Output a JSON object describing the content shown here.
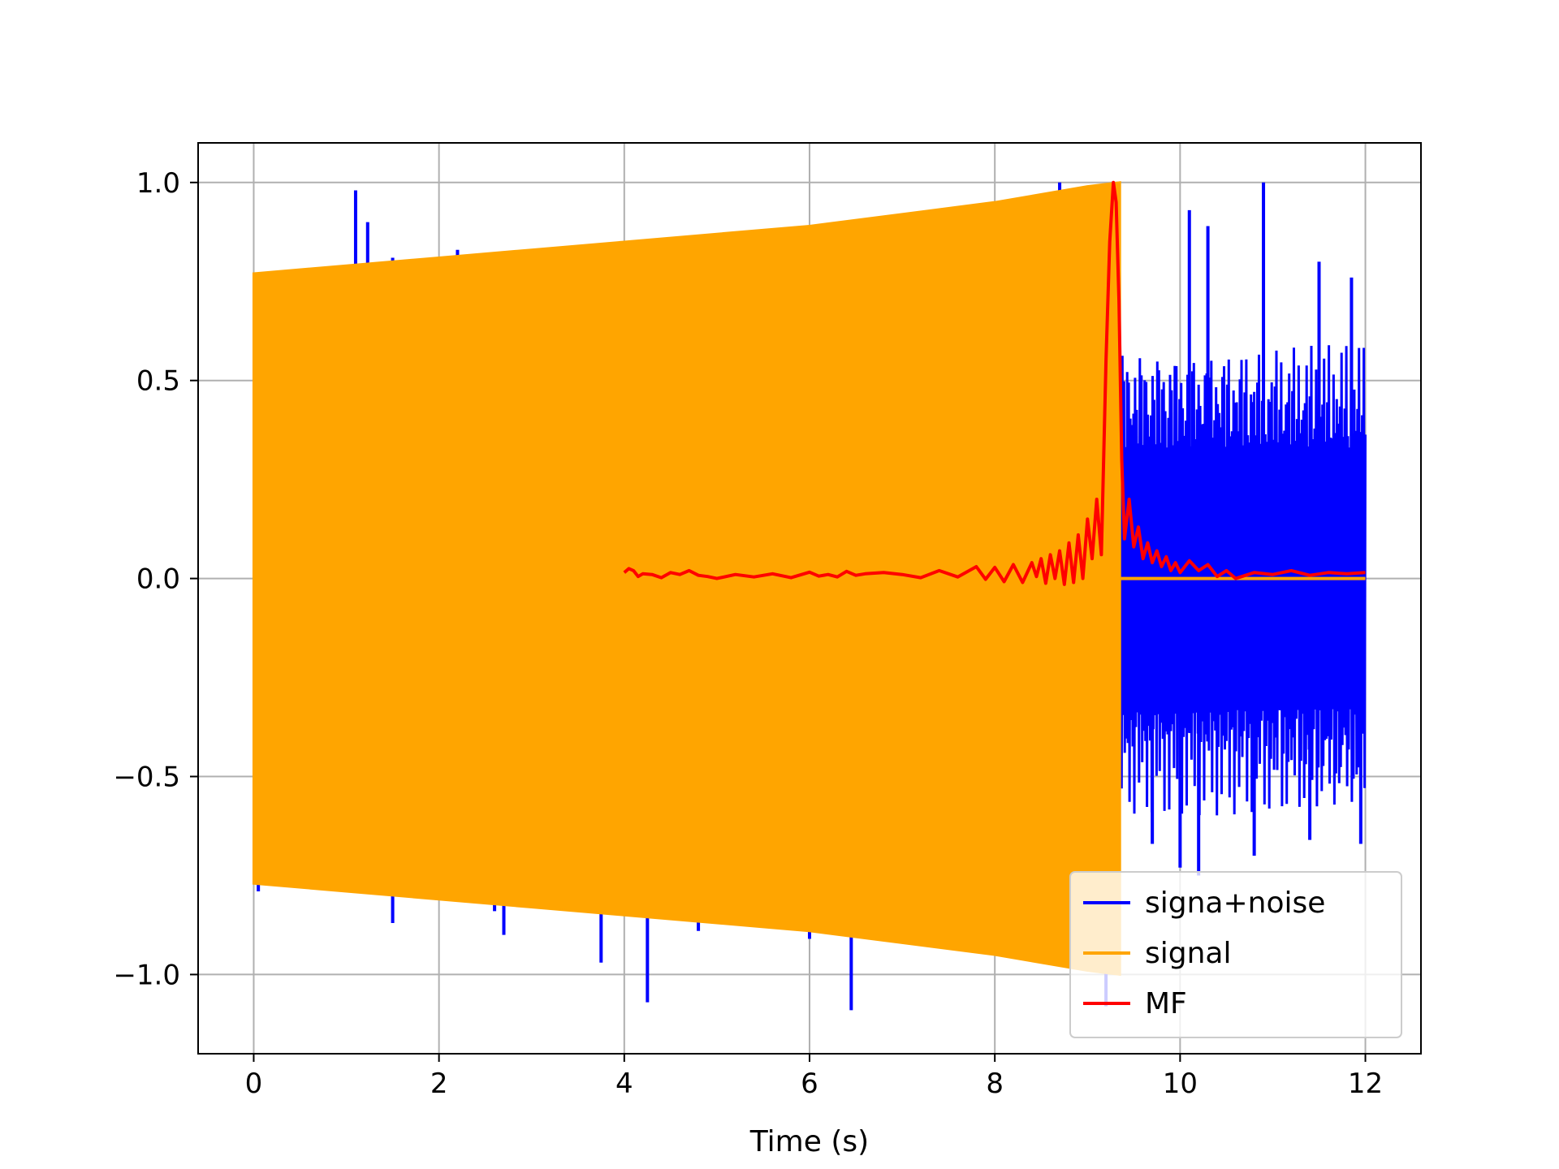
{
  "chart_data": {
    "type": "line",
    "title": "",
    "xlabel": "Time (s)",
    "ylabel": "",
    "xlim": [
      -0.6,
      12.6
    ],
    "ylim": [
      -1.2,
      1.1
    ],
    "xticks": [
      0,
      2,
      4,
      6,
      8,
      10,
      12
    ],
    "xtick_labels": [
      "0",
      "2",
      "4",
      "6",
      "8",
      "10",
      "12"
    ],
    "yticks": [
      -1.0,
      -0.5,
      0.0,
      0.5,
      1.0
    ],
    "ytick_labels": [
      "−1.0",
      "−0.5",
      "0.0",
      "0.5",
      "1.0"
    ],
    "grid": true,
    "legend_position": "lower right",
    "series": [
      {
        "name": "signa+noise",
        "color": "#0000ff",
        "x_range": [
          0,
          12
        ],
        "envelope_x": [
          0,
          1,
          2,
          3,
          4,
          5,
          6,
          7,
          8,
          9,
          9.35,
          9.35,
          10,
          11,
          12
        ],
        "envelope_upper": [
          0.77,
          0.79,
          0.81,
          0.83,
          0.85,
          0.87,
          0.89,
          0.92,
          0.95,
          0.99,
          1.0,
          0.6,
          0.6,
          0.6,
          0.6
        ],
        "envelope_lower": [
          -0.77,
          -0.79,
          -0.81,
          -0.83,
          -0.85,
          -0.87,
          -0.89,
          -0.92,
          -0.95,
          -0.99,
          -1.0,
          -0.6,
          -0.6,
          -0.6,
          -0.6
        ],
        "spikes_up": [
          [
            1.1,
            0.98
          ],
          [
            1.23,
            0.9
          ],
          [
            1.5,
            0.81
          ],
          [
            2.2,
            0.83
          ],
          [
            4.9,
            0.87
          ],
          [
            8.7,
            1.0
          ],
          [
            10.1,
            0.93
          ],
          [
            10.3,
            0.89
          ],
          [
            10.9,
            1.0
          ],
          [
            11.5,
            0.8
          ],
          [
            11.85,
            0.76
          ]
        ],
        "spikes_down": [
          [
            0.05,
            -0.79
          ],
          [
            1.1,
            -0.79
          ],
          [
            1.5,
            -0.87
          ],
          [
            2.6,
            -0.84
          ],
          [
            2.7,
            -0.9
          ],
          [
            3.75,
            -0.97
          ],
          [
            4.25,
            -1.07
          ],
          [
            4.8,
            -0.89
          ],
          [
            6.0,
            -0.91
          ],
          [
            6.45,
            -1.09
          ],
          [
            9.2,
            -1.08
          ],
          [
            9.7,
            -0.67
          ],
          [
            10.0,
            -0.73
          ],
          [
            10.2,
            -0.75
          ],
          [
            10.8,
            -0.7
          ],
          [
            11.4,
            -0.66
          ],
          [
            11.95,
            -0.67
          ]
        ]
      },
      {
        "name": "signal",
        "color": "#ffa500",
        "x_range": [
          0,
          12
        ],
        "envelope_x": [
          0,
          1,
          2,
          3,
          4,
          5,
          6,
          7,
          8,
          9,
          9.35
        ],
        "envelope_upper": [
          0.77,
          0.79,
          0.81,
          0.83,
          0.85,
          0.87,
          0.89,
          0.92,
          0.95,
          0.99,
          1.0
        ],
        "envelope_lower": [
          -0.77,
          -0.79,
          -0.81,
          -0.83,
          -0.85,
          -0.87,
          -0.89,
          -0.92,
          -0.95,
          -0.99,
          -1.0
        ],
        "after_x": [
          9.35,
          12
        ],
        "after_y": [
          0,
          0
        ]
      },
      {
        "name": "MF",
        "color": "#ff0000",
        "x": [
          4.0,
          4.05,
          4.1,
          4.15,
          4.2,
          4.3,
          4.4,
          4.5,
          4.6,
          4.7,
          4.8,
          4.9,
          5.0,
          5.2,
          5.4,
          5.6,
          5.8,
          6.0,
          6.1,
          6.2,
          6.3,
          6.4,
          6.5,
          6.6,
          6.8,
          7.0,
          7.2,
          7.4,
          7.6,
          7.8,
          7.9,
          8.0,
          8.1,
          8.2,
          8.3,
          8.4,
          8.45,
          8.5,
          8.55,
          8.6,
          8.65,
          8.7,
          8.75,
          8.8,
          8.85,
          8.9,
          8.95,
          9.0,
          9.05,
          9.1,
          9.15,
          9.2,
          9.24,
          9.28,
          9.31,
          9.34,
          9.37,
          9.4,
          9.45,
          9.5,
          9.55,
          9.6,
          9.65,
          9.7,
          9.75,
          9.8,
          9.85,
          9.9,
          9.95,
          10.0,
          10.1,
          10.2,
          10.3,
          10.4,
          10.5,
          10.6,
          10.8,
          11.0,
          11.2,
          11.4,
          11.6,
          11.8,
          12.0
        ],
        "y": [
          0.015,
          0.025,
          0.02,
          0.005,
          0.012,
          0.01,
          0.002,
          0.015,
          0.01,
          0.02,
          0.008,
          0.005,
          0.0,
          0.01,
          0.004,
          0.012,
          0.002,
          0.016,
          0.006,
          0.01,
          0.004,
          0.018,
          0.008,
          0.012,
          0.015,
          0.01,
          0.002,
          0.02,
          0.004,
          0.03,
          -0.002,
          0.028,
          -0.008,
          0.035,
          -0.01,
          0.04,
          0.005,
          0.05,
          -0.012,
          0.06,
          0.0,
          0.07,
          -0.015,
          0.09,
          -0.01,
          0.11,
          0.0,
          0.15,
          0.05,
          0.2,
          0.06,
          0.55,
          0.85,
          1.0,
          0.95,
          0.7,
          0.3,
          0.1,
          0.2,
          0.08,
          0.13,
          0.05,
          0.09,
          0.04,
          0.07,
          0.03,
          0.055,
          0.02,
          0.04,
          0.015,
          0.045,
          0.02,
          0.035,
          0.005,
          0.02,
          0.0,
          0.015,
          0.01,
          0.02,
          0.008,
          0.015,
          0.012,
          0.015
        ]
      }
    ]
  }
}
